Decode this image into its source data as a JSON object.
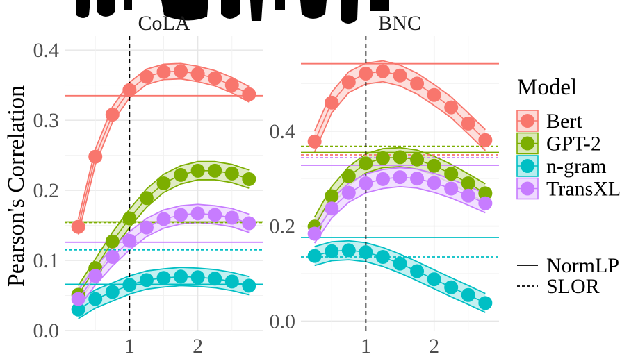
{
  "colors": {
    "Bert": "#F8766D",
    "GPT-2": "#7CAE00",
    "n-gram": "#00BFC4",
    "TransXL": "#C77CFF"
  },
  "chart_data": {
    "type": "line",
    "title": "",
    "ylabel": "Pearson's Correlation",
    "xlabel": "",
    "legend": {
      "title": "Model",
      "entries": [
        "Bert",
        "GPT-2",
        "n-gram",
        "TransXL"
      ],
      "linetype_entries": [
        "NormLP",
        "SLOR"
      ],
      "position": "right"
    },
    "grid": true,
    "vline_x": 1,
    "panels": [
      {
        "name": "CoLA",
        "xlim": [
          0.05,
          2.95
        ],
        "ylim": [
          0.0,
          0.42
        ],
        "xticks": [
          "1",
          "2"
        ],
        "yticks": [
          "0.0",
          "0.1",
          "0.2",
          "0.3",
          "0.4"
        ],
        "x": [
          0.25,
          0.5,
          0.75,
          1.0,
          1.25,
          1.5,
          1.75,
          2.0,
          2.25,
          2.5,
          2.75
        ],
        "series": [
          {
            "name": "Bert",
            "values": [
              0.148,
              0.248,
              0.308,
              0.343,
              0.362,
              0.369,
              0.37,
              0.366,
              0.36,
              0.35,
              0.337
            ],
            "band": 0.011
          },
          {
            "name": "GPT-2",
            "values": [
              0.051,
              0.089,
              0.127,
              0.16,
              0.189,
              0.21,
              0.222,
              0.228,
              0.228,
              0.224,
              0.216
            ],
            "band": 0.013
          },
          {
            "name": "n-gram",
            "values": [
              0.03,
              0.045,
              0.055,
              0.065,
              0.072,
              0.075,
              0.077,
              0.076,
              0.074,
              0.07,
              0.064
            ],
            "band": 0.013
          },
          {
            "name": "TransXL",
            "values": [
              0.045,
              0.078,
              0.105,
              0.128,
              0.147,
              0.159,
              0.165,
              0.167,
              0.165,
              0.161,
              0.153
            ],
            "band": 0.013
          }
        ],
        "hlines": [
          {
            "model": "Bert",
            "style": "NormLP",
            "y": 0.335
          },
          {
            "model": "GPT-2",
            "style": "NormLP",
            "y": 0.155
          },
          {
            "model": "GPT-2",
            "style": "SLOR",
            "y": 0.154
          },
          {
            "model": "TransXL",
            "style": "NormLP",
            "y": 0.126
          },
          {
            "model": "n-gram",
            "style": "SLOR",
            "y": 0.115
          },
          {
            "model": "n-gram",
            "style": "NormLP",
            "y": 0.066
          }
        ]
      },
      {
        "name": "BNC",
        "xlim": [
          0.05,
          2.95
        ],
        "ylim": [
          -0.02,
          0.6
        ],
        "xticks": [
          "1",
          "2"
        ],
        "yticks": [
          "0.0",
          "0.2",
          "0.4"
        ],
        "x": [
          0.25,
          0.5,
          0.75,
          1.0,
          1.25,
          1.5,
          1.75,
          2.0,
          2.25,
          2.5,
          2.75
        ],
        "series": [
          {
            "name": "Bert",
            "values": [
              0.378,
              0.46,
              0.503,
              0.521,
              0.526,
              0.517,
              0.5,
              0.476,
              0.45,
              0.416,
              0.381
            ],
            "band": 0.022
          },
          {
            "name": "GPT-2",
            "values": [
              0.199,
              0.263,
              0.305,
              0.332,
              0.343,
              0.345,
              0.34,
              0.327,
              0.31,
              0.29,
              0.269
            ],
            "band": 0.02
          },
          {
            "name": "n-gram",
            "values": [
              0.137,
              0.147,
              0.149,
              0.145,
              0.135,
              0.121,
              0.105,
              0.088,
              0.071,
              0.055,
              0.038
            ],
            "band": 0.02
          },
          {
            "name": "TransXL",
            "values": [
              0.184,
              0.237,
              0.27,
              0.29,
              0.299,
              0.303,
              0.3,
              0.291,
              0.279,
              0.264,
              0.248
            ],
            "band": 0.02
          }
        ],
        "hlines": [
          {
            "model": "Bert",
            "style": "NormLP",
            "y": 0.542
          },
          {
            "model": "GPT-2",
            "style": "SLOR",
            "y": 0.368
          },
          {
            "model": "GPT-2",
            "style": "NormLP",
            "y": 0.355
          },
          {
            "model": "Bert",
            "style": "SLOR",
            "y": 0.35
          },
          {
            "model": "TransXL",
            "style": "SLOR",
            "y": 0.344
          },
          {
            "model": "TransXL",
            "style": "NormLP",
            "y": 0.328
          },
          {
            "model": "n-gram",
            "style": "NormLP",
            "y": 0.176
          },
          {
            "model": "n-gram",
            "style": "SLOR",
            "y": 0.135
          }
        ]
      }
    ]
  }
}
